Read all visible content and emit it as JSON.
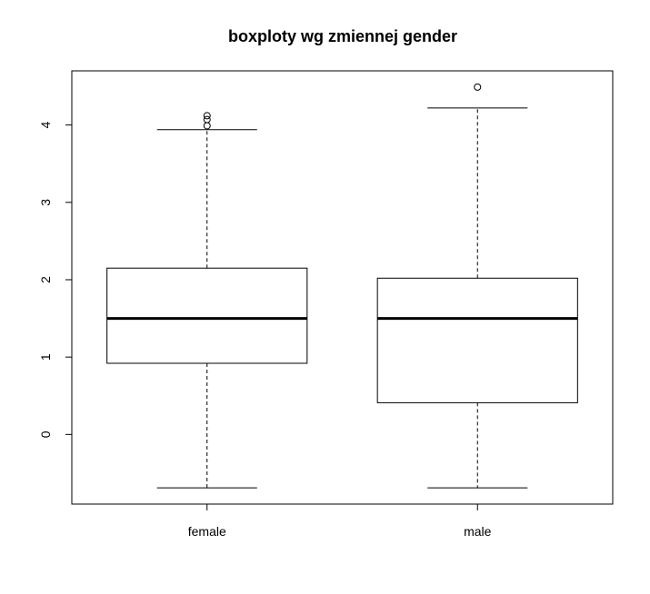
{
  "chart_data": {
    "type": "boxplot",
    "title": "boxploty wg zmiennej gender",
    "xlabel": "",
    "ylabel": "",
    "categories": [
      "female",
      "male"
    ],
    "ylim": [
      -0.9,
      4.7
    ],
    "yticks": [
      0,
      1,
      2,
      3,
      4
    ],
    "ytick_labels": [
      "0",
      "1",
      "2",
      "3",
      "4"
    ],
    "grid": false,
    "boxes": [
      {
        "name": "female",
        "whisker_low": -0.69,
        "q1": 0.92,
        "median": 1.5,
        "q3": 2.15,
        "whisker_high": 3.94,
        "outliers": [
          3.99,
          4.07,
          4.12
        ]
      },
      {
        "name": "male",
        "whisker_low": -0.69,
        "q1": 0.41,
        "median": 1.5,
        "q3": 2.02,
        "whisker_high": 4.22,
        "outliers": [
          4.49
        ]
      }
    ]
  }
}
